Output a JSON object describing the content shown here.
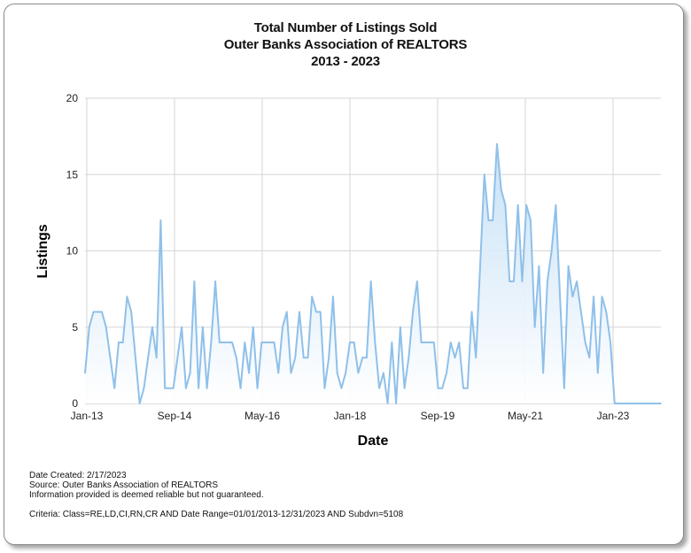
{
  "chart_data": {
    "type": "area",
    "title": [
      "Total Number of Listings Sold",
      "Outer Banks Association of REALTORS",
      "2013 - 2023"
    ],
    "xlabel": "Date",
    "ylabel": "Listings",
    "ylim": [
      0,
      20
    ],
    "yticks": [
      "0",
      "5",
      "10",
      "15",
      "20"
    ],
    "xticks": [
      "Jan-13",
      "Sep-14",
      "May-16",
      "Jan-18",
      "Sep-19",
      "May-21",
      "Jan-23"
    ],
    "grid": true,
    "colors": {
      "line": "#8fc0ea",
      "fill_top": "#c2def5",
      "fill_bottom": "#ffffff",
      "grid": "#d6d6d6"
    },
    "values": [
      2,
      5,
      6,
      6,
      6,
      5,
      3,
      1,
      4,
      4,
      7,
      6,
      3,
      0,
      1,
      3,
      5,
      3,
      12,
      1,
      1,
      1,
      3,
      5,
      1,
      2,
      8,
      1,
      5,
      1,
      4,
      8,
      4,
      4,
      4,
      4,
      3,
      1,
      4,
      2,
      5,
      1,
      4,
      4,
      4,
      4,
      2,
      5,
      6,
      2,
      3,
      6,
      3,
      3,
      7,
      6,
      6,
      1,
      3,
      7,
      2,
      1,
      2,
      4,
      4,
      2,
      3,
      3,
      8,
      4,
      1,
      2,
      0,
      4,
      0,
      5,
      1,
      3,
      6,
      8,
      4,
      4,
      4,
      4,
      1,
      1,
      2,
      4,
      3,
      4,
      1,
      1,
      6,
      3,
      9,
      15,
      12,
      12,
      17,
      14,
      13,
      8,
      8,
      13,
      8,
      13,
      12,
      5,
      9,
      2,
      8,
      10,
      13,
      7,
      1,
      9,
      7,
      8,
      6,
      4,
      3,
      7,
      2,
      7,
      6,
      4,
      0,
      0,
      0,
      0,
      0,
      0,
      0,
      0,
      0,
      0,
      0,
      0
    ]
  },
  "footer": {
    "date_created": "Date Created: 2/17/2023",
    "source": "Source: Outer Banks Association of REALTORS",
    "disclaimer": "Information provided is deemed reliable but not guaranteed.",
    "criteria": "Criteria: Class=RE,LD,CI,RN,CR AND Date Range=01/01/2013-12/31/2023 AND Subdvn=5108"
  }
}
